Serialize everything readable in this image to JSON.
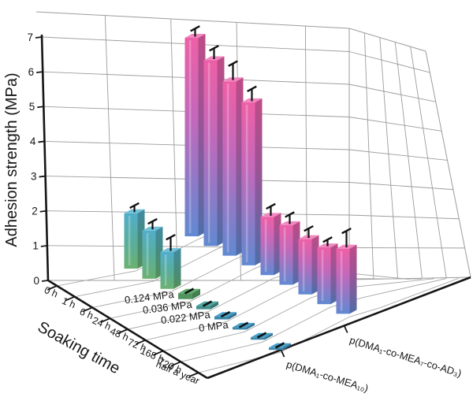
{
  "chart_data": {
    "type": "bar",
    "projection": "3d",
    "title": "",
    "ylabel": "Adhesion strength (MPa)",
    "xlabel": "Soaking time",
    "ylim": [
      0,
      7
    ],
    "yticks": [
      "0",
      "1",
      "2",
      "3",
      "4",
      "5",
      "6",
      "7"
    ],
    "categories": [
      "0 h",
      "1 h",
      "6 h",
      "24 h",
      "48 h",
      "72 h",
      "168 h",
      "720 h",
      "half a year"
    ],
    "series": [
      {
        "name": "p(DMA₁-co-MEA₁₀)",
        "values": [
          1.95,
          1.7,
          1.3,
          0.124,
          0.036,
          0.022,
          0,
          0,
          0
        ],
        "errors": [
          0.15,
          0.2,
          0.4,
          0.06,
          0.05,
          0.05,
          0.04,
          0.04,
          0.04
        ],
        "color_top": "#52adca",
        "color_mid": "#58ae9d",
        "color_bottom": "#6cb171"
      },
      {
        "name": "p(DMA₁-co-MEA₇-co-AD₃)",
        "values": [
          7.0,
          6.55,
          6.15,
          5.75,
          2.05,
          2.1,
          1.95,
          2.0,
          2.3
        ],
        "errors": [
          0.2,
          0.3,
          0.5,
          0.35,
          0.25,
          0.25,
          0.25,
          0.15,
          0.5
        ],
        "color_top": "#ee5fa7",
        "color_mid": "#c468ba",
        "color_bottom": "#6189d2"
      }
    ],
    "tile_colors": [
      "#5fae6e",
      "#4da7a3",
      "#469fc8",
      "#469fc8",
      "#469fc8",
      "#469fc8"
    ],
    "annotations": [
      {
        "text": "0.124 MPa",
        "category": "24 h"
      },
      {
        "text": "0.036 MPa",
        "category": "48 h"
      },
      {
        "text": "0.022 MPa",
        "category": "72 h"
      },
      {
        "text": "0 MPa",
        "category": "168 h"
      }
    ],
    "legend_position": "none",
    "grid": true,
    "axis_color": "#161616",
    "grid_color": "#9c9c9c",
    "error_bar_color": "#111111",
    "background": "#ffffff"
  }
}
